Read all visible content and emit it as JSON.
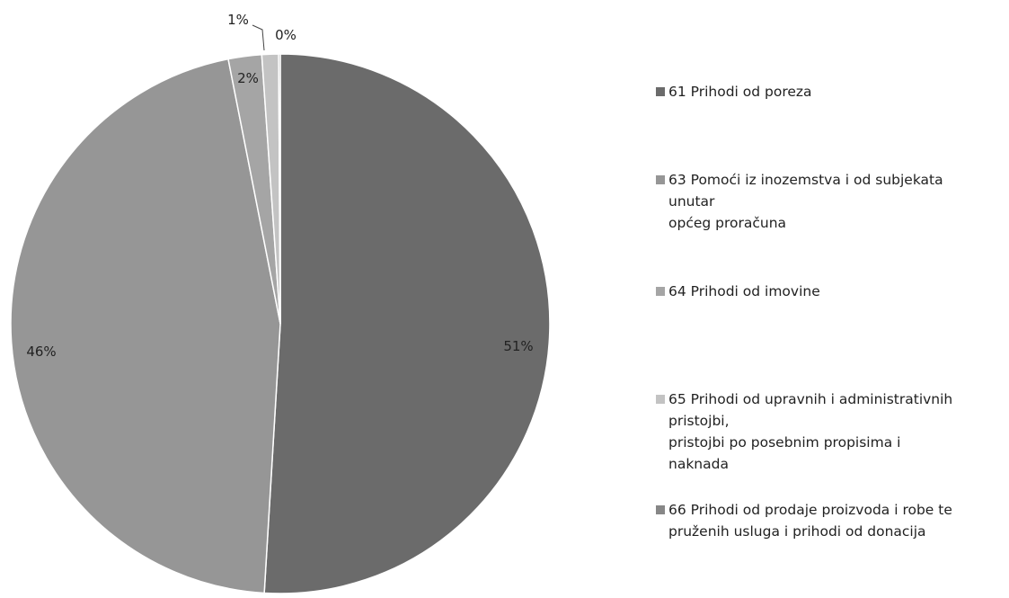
{
  "chart_data": {
    "type": "pie",
    "title": "",
    "slices": [
      {
        "label": "61 Prihodi od poreza",
        "value": 51,
        "display": "51%",
        "color": "#6b6b6b"
      },
      {
        "label": "63 Pomoći iz inozemstva i od subjekata unutar općeg proračuna",
        "value": 46,
        "display": "46%",
        "color": "#969696"
      },
      {
        "label": "64 Prihodi od imovine",
        "value": 2,
        "display": "2%",
        "color": "#a5a5a5"
      },
      {
        "label": "65 Prihodi od upravnih i administrativnih pristojbi, pristojbi po posebnim propisima i naknada",
        "value": 1,
        "display": "1%",
        "color": "#c3c3c3"
      },
      {
        "label": "66 Prihodi od prodaje proizvoda i robe te pruženih usluga i prihodi od donacija",
        "value": 0.1,
        "display": "0%",
        "color": "#878787"
      }
    ],
    "legend": [
      {
        "text": "61 Prihodi od poreza",
        "color": "#6b6b6b"
      },
      {
        "text": "63 Pomoći iz inozemstva i od subjekata\nunutar\n općeg proračuna",
        "color": "#969696"
      },
      {
        "text": "64 Prihodi od imovine",
        "color": "#a5a5a5"
      },
      {
        "text": "65 Prihodi od upravnih i administrativnih\npristojbi,\n pristojbi po posebnim propisima i\nnaknada",
        "color": "#c3c3c3"
      },
      {
        "text": "66 Prihodi od prodaje proizvoda i robe te\npruženih usluga i prihodi od donacija",
        "color": "#878787"
      }
    ],
    "legend_position": "right"
  }
}
